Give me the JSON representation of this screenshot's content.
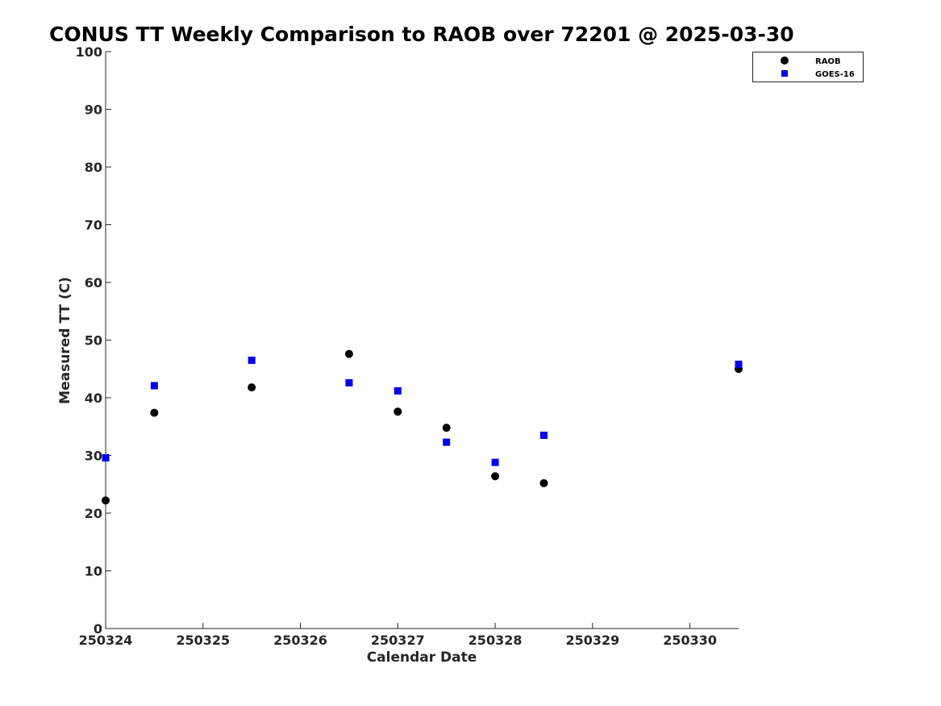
{
  "chart_data": {
    "type": "scatter",
    "title": "CONUS TT Weekly Comparison to RAOB over 72201 @ 2025-03-30",
    "xlabel": "Calendar Date",
    "ylabel": "Measured TT (C)",
    "xlim": [
      "250324",
      "250330 12:00"
    ],
    "ylim": [
      0,
      100
    ],
    "x_ticks": [
      "250324",
      "250325",
      "250326",
      "250327",
      "250328",
      "250329",
      "250330"
    ],
    "y_ticks": [
      0,
      10,
      20,
      30,
      40,
      50,
      60,
      70,
      80,
      90,
      100
    ],
    "grid": false,
    "legend_position": "top-right",
    "series": [
      {
        "name": "RAOB",
        "marker": "circle",
        "color": "#000000",
        "points": [
          {
            "x": "250324 00:00",
            "y": 22.2
          },
          {
            "x": "250324 12:00",
            "y": 37.4
          },
          {
            "x": "250325 12:00",
            "y": 41.8
          },
          {
            "x": "250326 12:00",
            "y": 47.6
          },
          {
            "x": "250327 00:00",
            "y": 37.6
          },
          {
            "x": "250327 12:00",
            "y": 34.8
          },
          {
            "x": "250328 00:00",
            "y": 26.4
          },
          {
            "x": "250328 12:00",
            "y": 25.2
          },
          {
            "x": "250330 12:00",
            "y": 45.0
          }
        ]
      },
      {
        "name": "GOES-16",
        "marker": "square",
        "color": "#0000ee",
        "points": [
          {
            "x": "250324 00:00",
            "y": 29.6
          },
          {
            "x": "250324 12:00",
            "y": 42.1
          },
          {
            "x": "250325 12:00",
            "y": 46.5
          },
          {
            "x": "250326 12:00",
            "y": 42.6
          },
          {
            "x": "250327 00:00",
            "y": 41.2
          },
          {
            "x": "250327 12:00",
            "y": 32.3
          },
          {
            "x": "250328 00:00",
            "y": 28.8
          },
          {
            "x": "250328 12:00",
            "y": 33.5
          },
          {
            "x": "250330 12:00",
            "y": 45.8
          }
        ]
      }
    ]
  }
}
